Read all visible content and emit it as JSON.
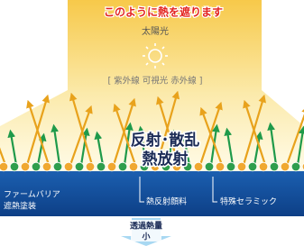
{
  "header": {
    "title": "このように熱を遮ります"
  },
  "sun": {
    "label": "太陽光",
    "spectrum": "[ 紫外線 可視光 赤外線 ]"
  },
  "center": {
    "lines": [
      "反射･散乱",
      "熱放射"
    ]
  },
  "coating": {
    "lines": [
      "ファームバリア",
      "遮熱塗装"
    ]
  },
  "labels": {
    "pigment": "熱反射顔料",
    "ceramic": "特殊セラミック"
  },
  "transmission": {
    "lines": [
      "透過熱量",
      "小"
    ]
  }
}
